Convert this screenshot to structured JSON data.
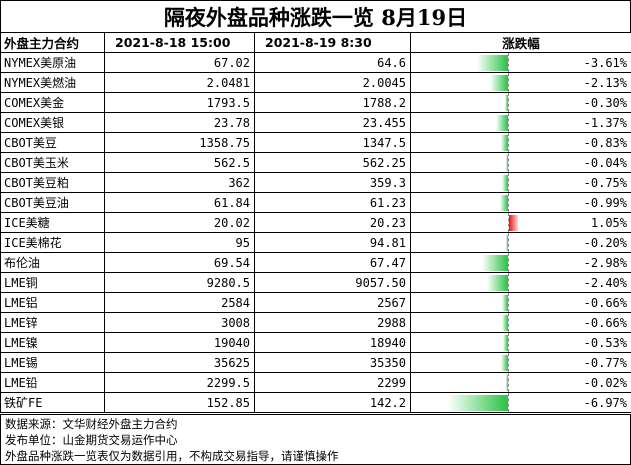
{
  "title": "隔夜外盘品种涨跌一览 8月19日",
  "headers": [
    "外盘主力合约",
    "2021-8-18 15:00",
    "2021-8-19 8:30",
    "涨跌幅"
  ],
  "rows": [
    {
      "name": "NYMEX美原油",
      "prev": "67.02",
      "curr": "64.6",
      "chg": "-3.61%",
      "pct": -3.61
    },
    {
      "name": "NYMEX美燃油",
      "prev": "2.0481",
      "curr": "2.0045",
      "chg": "-2.13%",
      "pct": -2.13
    },
    {
      "name": "COMEX美金",
      "prev": "1793.5",
      "curr": "1788.2",
      "chg": "-0.30%",
      "pct": -0.3
    },
    {
      "name": "COMEX美银",
      "prev": "23.78",
      "curr": "23.455",
      "chg": "-1.37%",
      "pct": -1.37
    },
    {
      "name": "CBOT美豆",
      "prev": "1358.75",
      "curr": "1347.5",
      "chg": "-0.83%",
      "pct": -0.83
    },
    {
      "name": "CBOT美玉米",
      "prev": "562.5",
      "curr": "562.25",
      "chg": "-0.04%",
      "pct": -0.04
    },
    {
      "name": "CBOT美豆粕",
      "prev": "362",
      "curr": "359.3",
      "chg": "-0.75%",
      "pct": -0.75
    },
    {
      "name": "CBOT美豆油",
      "prev": "61.84",
      "curr": "61.23",
      "chg": "-0.99%",
      "pct": -0.99
    },
    {
      "name": "ICE美糖",
      "prev": "20.02",
      "curr": "20.23",
      "chg": "1.05%",
      "pct": 1.05
    },
    {
      "name": "ICE美棉花",
      "prev": "95",
      "curr": "94.81",
      "chg": "-0.20%",
      "pct": -0.2
    },
    {
      "name": "布伦油",
      "prev": "69.54",
      "curr": "67.47",
      "chg": "-2.98%",
      "pct": -2.98
    },
    {
      "name": "LME铜",
      "prev": "9280.5",
      "curr": "9057.50",
      "chg": "-2.40%",
      "pct": -2.4
    },
    {
      "name": "LME铝",
      "prev": "2584",
      "curr": "2567",
      "chg": "-0.66%",
      "pct": -0.66
    },
    {
      "name": "LME锌",
      "prev": "3008",
      "curr": "2988",
      "chg": "-0.66%",
      "pct": -0.66
    },
    {
      "name": "LME镍",
      "prev": "19040",
      "curr": "18940",
      "chg": "-0.53%",
      "pct": -0.53
    },
    {
      "name": "LME锡",
      "prev": "35625",
      "curr": "35350",
      "chg": "-0.77%",
      "pct": -0.77
    },
    {
      "name": "LME铅",
      "prev": "2299.5",
      "curr": "2299",
      "chg": "-0.02%",
      "pct": -0.02
    },
    {
      "name": "铁矿FE",
      "prev": "152.85",
      "curr": "142.2",
      "chg": "-6.97%",
      "pct": -6.97
    }
  ],
  "footer": {
    "line1": "数据来源：文华财经外盘主力合约",
    "line2": "发布单位：山金期货交易运作中心",
    "line3": "外盘品种涨跌一览表仅为数据引用，不构成交易指导，请谨慎操作"
  },
  "colors": {
    "down": "#28c244",
    "up": "#e8141e"
  }
}
